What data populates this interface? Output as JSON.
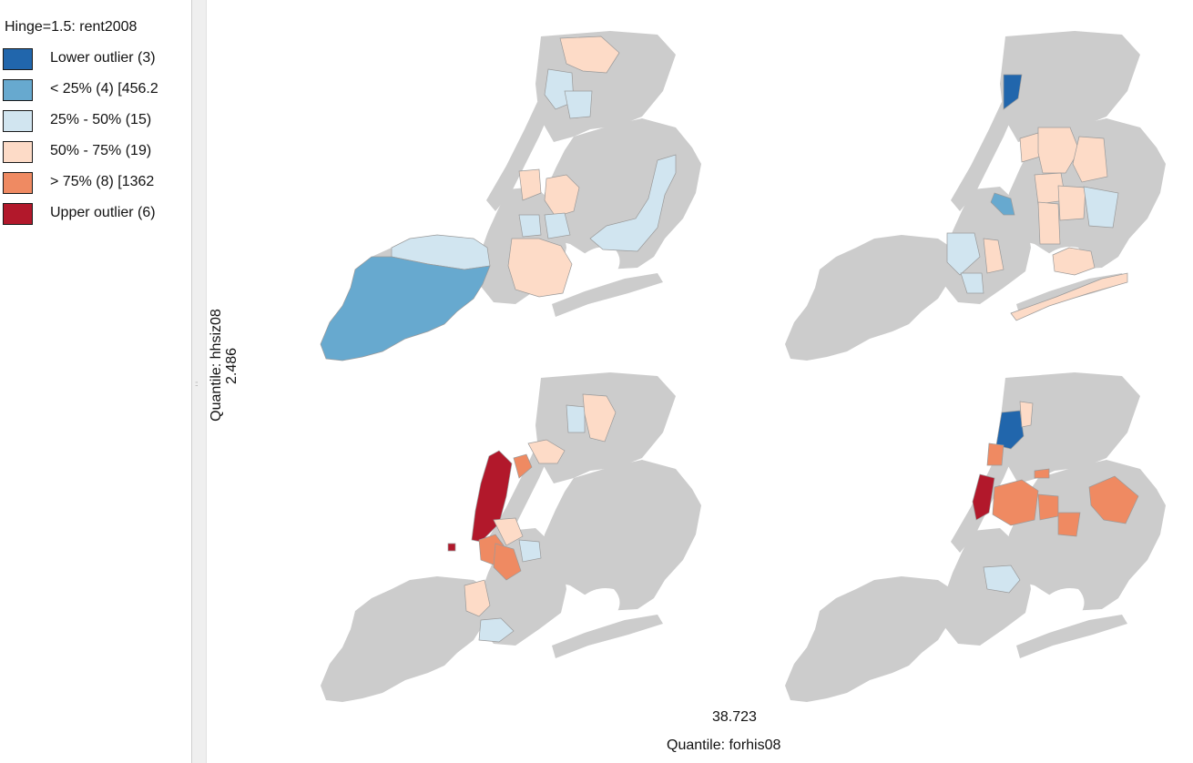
{
  "legend": {
    "title": "Hinge=1.5: rent2008",
    "items": [
      {
        "label": "Lower outlier (3)",
        "color": "#2166ac"
      },
      {
        "label": "< 25% (4)  [456.2",
        "color": "#67a9cf"
      },
      {
        "label": "25% - 50% (15)",
        "color": "#d1e5f0"
      },
      {
        "label": "50% - 75% (19)",
        "color": "#fddbc7"
      },
      {
        "label": "> 75% (8)  [1362",
        "color": "#ef8a62"
      },
      {
        "label": "Upper outlier (6)",
        "color": "#b2182b"
      }
    ]
  },
  "conditional_map": {
    "x_variable": "Quantile: forhis08",
    "x_break": "38.723",
    "y_variable": "Quantile: hhsiz08",
    "y_break": "2.486",
    "base_color": "#cccccc",
    "panels": [
      {
        "id": "top-left",
        "highlighted": [
          "< 25%",
          "25% - 50%",
          "50% - 75%"
        ]
      },
      {
        "id": "top-right",
        "highlighted": [
          "Lower outlier",
          "< 25%",
          "25% - 50%",
          "50% - 75%"
        ]
      },
      {
        "id": "bottom-left",
        "highlighted": [
          "25% - 50%",
          "50% - 75%",
          "> 75%",
          "Upper outlier"
        ]
      },
      {
        "id": "bottom-right",
        "highlighted": [
          "Lower outlier",
          "25% - 50%",
          "50% - 75%",
          "> 75%",
          "Upper outlier"
        ]
      }
    ]
  }
}
